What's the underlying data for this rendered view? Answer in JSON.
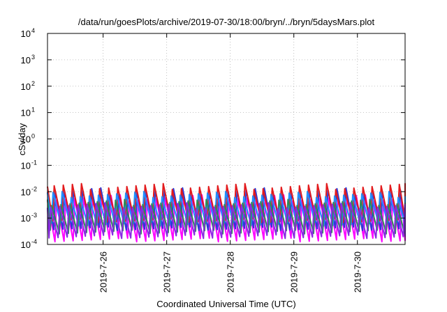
{
  "chart_data": {
    "type": "line",
    "title": "/data/run/goesPlots/archive/2019-07-30/18:00/bryn/../bryn/5daysMars.plot",
    "xlabel": "Coordinated Universal Time (UTC)",
    "ylabel": "cSv/day",
    "yscale": "log",
    "ylim": [
      0.0001,
      10000
    ],
    "xlim": [
      "2019-07-25T03:00",
      "2019-07-30T18:00"
    ],
    "x_ticks": [
      "2019-7-26",
      "2019-7-27",
      "2019-7-28",
      "2019-7-29",
      "2019-7-30"
    ],
    "y_ticks": [
      {
        "base": "10",
        "exp": "4"
      },
      {
        "base": "10",
        "exp": "3"
      },
      {
        "base": "10",
        "exp": "2"
      },
      {
        "base": "10",
        "exp": "1"
      },
      {
        "base": "10",
        "exp": "0"
      },
      {
        "base": "10",
        "exp": "-1"
      },
      {
        "base": "10",
        "exp": "-2"
      },
      {
        "base": "10",
        "exp": "-3"
      },
      {
        "base": "10",
        "exp": "-4"
      }
    ],
    "grid": true,
    "pattern": "sawtooth, ~7 cycles per day",
    "series": [
      {
        "color": "#ff00ff",
        "peak": 0.006,
        "trough": 0.00015
      },
      {
        "color": "#2b3bd6",
        "peak": 0.011,
        "trough": 0.0004
      },
      {
        "color": "#e31a1c",
        "peak": 0.016,
        "trough": 0.0008
      },
      {
        "color": "#1e90ff",
        "peak": 0.008,
        "trough": 0.0006
      },
      {
        "color": "#2e8b57",
        "peak": 0.004,
        "trough": 0.0003
      },
      {
        "color": "#8a2be2",
        "peak": 0.003,
        "trough": 0.0002
      }
    ]
  }
}
